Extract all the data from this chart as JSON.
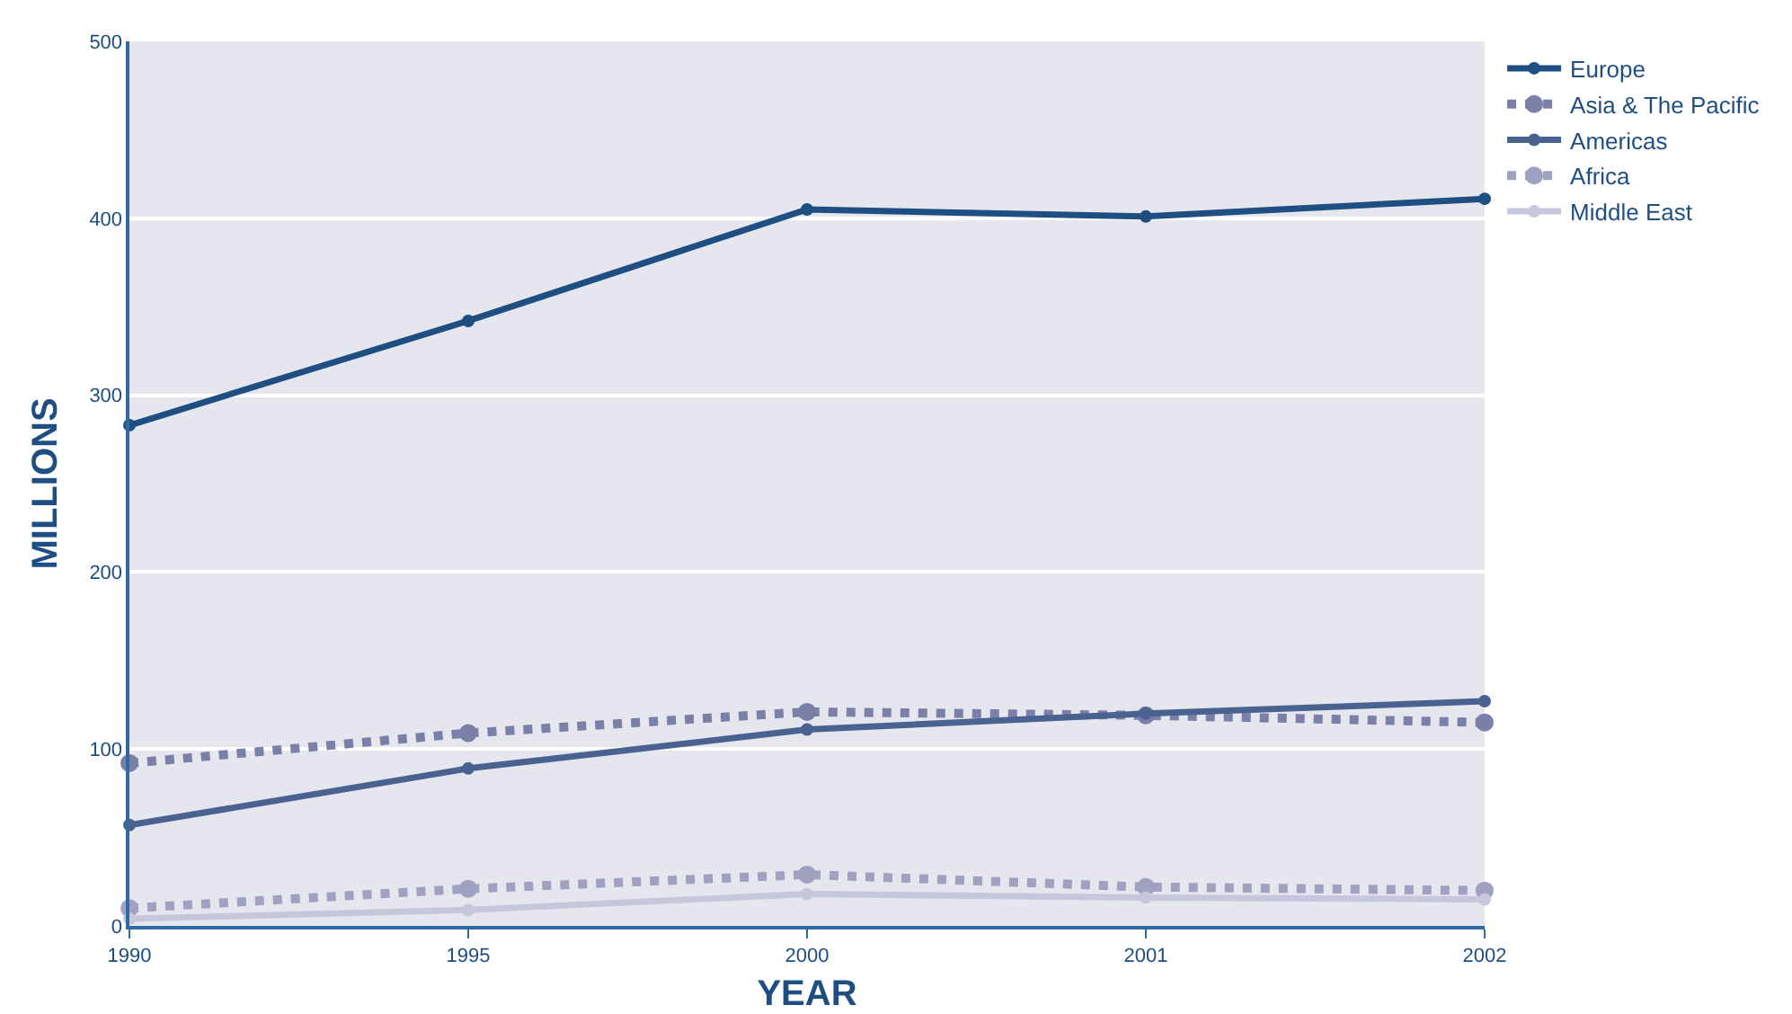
{
  "chart_data": {
    "type": "line",
    "xlabel": "YEAR",
    "ylabel": "MILLIONS",
    "categories": [
      "1990",
      "1995",
      "2000",
      "2001",
      "2002"
    ],
    "series": [
      {
        "name": "Europe",
        "color": "#1f4e82",
        "line_style": "solid",
        "values": [
          283,
          342,
          405,
          401,
          411
        ]
      },
      {
        "name": "Asia & The Pacific",
        "color": "#7a80a8",
        "line_style": "dotted",
        "values": [
          92,
          109,
          121,
          119,
          115
        ]
      },
      {
        "name": "Americas",
        "color": "#4a6290",
        "line_style": "solid",
        "values": [
          57,
          89,
          111,
          120,
          127
        ]
      },
      {
        "name": "Africa",
        "color": "#9ea1c0",
        "line_style": "dotted",
        "values": [
          10,
          21,
          29,
          22,
          20
        ]
      },
      {
        "name": "Middle East",
        "color": "#c5c8dc",
        "line_style": "solid",
        "values": [
          4,
          9,
          18,
          16,
          15
        ]
      }
    ],
    "ylim": [
      0,
      500
    ],
    "yticks": [
      0,
      100,
      200,
      300,
      400,
      500
    ],
    "grid": "y",
    "legend": "top right",
    "marker": "circle"
  }
}
